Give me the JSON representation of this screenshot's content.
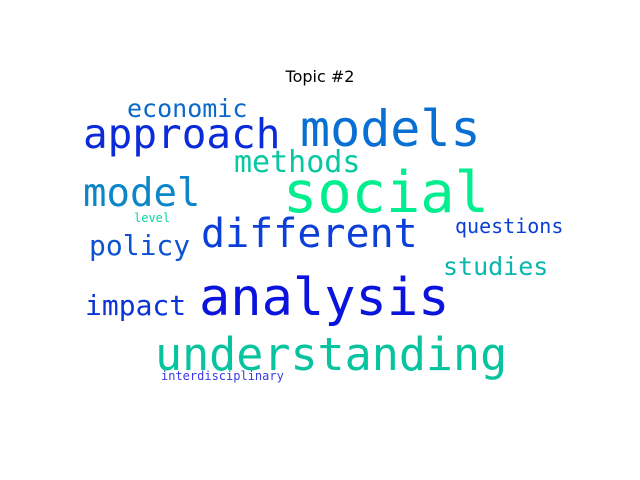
{
  "title": "Topic #2",
  "words": [
    {
      "text": "analysis",
      "color": "#0a14dc"
    },
    {
      "text": "social",
      "color": "#00ee8e"
    },
    {
      "text": "understanding",
      "color": "#07c49e"
    },
    {
      "text": "models",
      "color": "#0a6fd2"
    },
    {
      "text": "different",
      "color": "#0c3ed8"
    },
    {
      "text": "approach",
      "color": "#0b2ad8"
    },
    {
      "text": "model",
      "color": "#0c86c8"
    },
    {
      "text": "methods",
      "color": "#07c8a0"
    },
    {
      "text": "impact",
      "color": "#0b34d6"
    },
    {
      "text": "policy",
      "color": "#0c52d2"
    },
    {
      "text": "studies",
      "color": "#08b6ae"
    },
    {
      "text": "economic",
      "color": "#0c68c8"
    },
    {
      "text": "questions",
      "color": "#0b3ed6"
    },
    {
      "text": "level",
      "color": "#08d6a4"
    },
    {
      "text": "interdisciplinary",
      "color": "#3a3ae6"
    }
  ]
}
